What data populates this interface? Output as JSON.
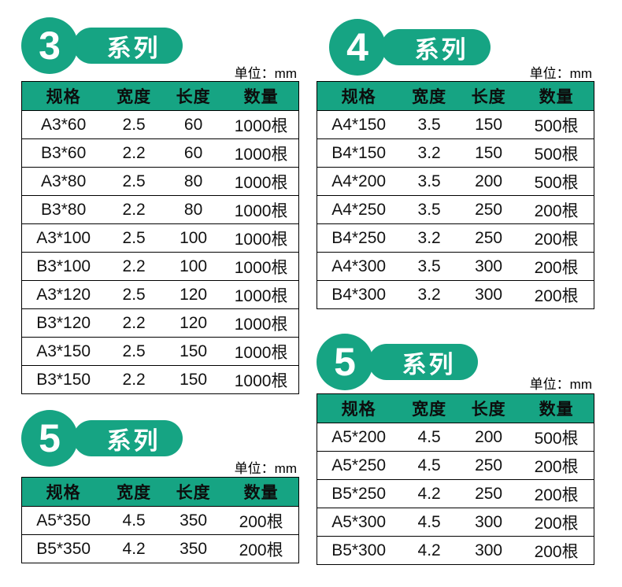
{
  "page": {
    "accent_green": "#16a483",
    "background": "#ffffff"
  },
  "sections": [
    {
      "id": "series-3",
      "badge_number": "3",
      "badge_label": "系列",
      "unit_label": "单位：mm",
      "columns": [
        "规格",
        "宽度",
        "长度",
        "数量"
      ],
      "rows": [
        [
          "A3*60",
          "2.5",
          "60",
          "1000根"
        ],
        [
          "B3*60",
          "2.2",
          "60",
          "1000根"
        ],
        [
          "A3*80",
          "2.5",
          "80",
          "1000根"
        ],
        [
          "B3*80",
          "2.2",
          "80",
          "1000根"
        ],
        [
          "A3*100",
          "2.5",
          "100",
          "1000根"
        ],
        [
          "B3*100",
          "2.2",
          "100",
          "1000根"
        ],
        [
          "A3*120",
          "2.5",
          "120",
          "1000根"
        ],
        [
          "B3*120",
          "2.2",
          "120",
          "1000根"
        ],
        [
          "A3*150",
          "2.5",
          "150",
          "1000根"
        ],
        [
          "B3*150",
          "2.2",
          "150",
          "1000根"
        ]
      ]
    },
    {
      "id": "series-4",
      "badge_number": "4",
      "badge_label": "系列",
      "unit_label": "单位：mm",
      "columns": [
        "规格",
        "宽度",
        "长度",
        "数量"
      ],
      "rows": [
        [
          "A4*150",
          "3.5",
          "150",
          "500根"
        ],
        [
          "B4*150",
          "3.2",
          "150",
          "500根"
        ],
        [
          "A4*200",
          "3.5",
          "200",
          "500根"
        ],
        [
          "A4*250",
          "3.5",
          "250",
          "200根"
        ],
        [
          "B4*250",
          "3.2",
          "250",
          "200根"
        ],
        [
          "A4*300",
          "3.5",
          "300",
          "200根"
        ],
        [
          "B4*300",
          "3.2",
          "300",
          "200根"
        ]
      ]
    },
    {
      "id": "series-5-bottom-left",
      "badge_number": "5",
      "badge_label": "系列",
      "unit_label": "单位：mm",
      "columns": [
        "规格",
        "宽度",
        "长度",
        "数量"
      ],
      "rows": [
        [
          "A5*350",
          "4.5",
          "350",
          "200根"
        ],
        [
          "B5*350",
          "4.2",
          "350",
          "200根"
        ]
      ]
    },
    {
      "id": "series-5-bottom-right",
      "badge_number": "5",
      "badge_label": "系列",
      "unit_label": "单位：mm",
      "columns": [
        "规格",
        "宽度",
        "长度",
        "数量"
      ],
      "rows": [
        [
          "A5*200",
          "4.5",
          "200",
          "500根"
        ],
        [
          "A5*250",
          "4.5",
          "250",
          "200根"
        ],
        [
          "B5*250",
          "4.2",
          "250",
          "200根"
        ],
        [
          "A5*300",
          "4.5",
          "300",
          "200根"
        ],
        [
          "B5*300",
          "4.2",
          "300",
          "200根"
        ]
      ]
    }
  ]
}
